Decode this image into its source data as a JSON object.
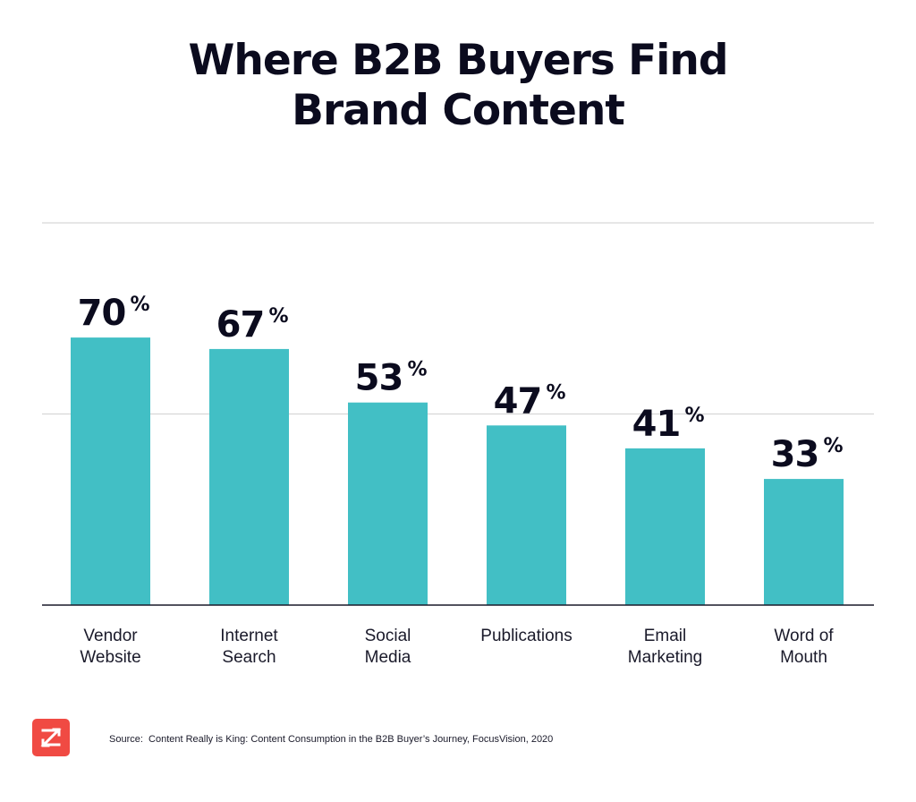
{
  "chart_data": {
    "type": "bar",
    "title": "Where B2B Buyers Find Brand Content",
    "title_lines": [
      "Where B2B Buyers Find",
      "Brand Content"
    ],
    "categories": [
      [
        "Vendor",
        "Website"
      ],
      [
        "Internet",
        "Search"
      ],
      [
        "Social",
        "Media"
      ],
      [
        "Publications"
      ],
      [
        "Email",
        "Marketing"
      ],
      [
        "Word of",
        "Mouth"
      ]
    ],
    "values": [
      70,
      67,
      53,
      47,
      41,
      33
    ],
    "value_labels": [
      "70",
      "67",
      "53",
      "47",
      "41",
      "33"
    ],
    "value_suffix": "%",
    "xlabel": "",
    "ylabel": "",
    "ylim": [
      0,
      100
    ],
    "grid": true,
    "bar_color": "#42bfc5",
    "axis_color": "#1a1a2a",
    "grid_color": "#d6d6d6"
  },
  "footer": {
    "source": "Source:  Content Really is King: Content Consumption in the B2B Buyer’s Journey, FocusVision, 2020",
    "logo_icon": "zoominfo-z-logo-icon",
    "logo_color": "#f04a43"
  }
}
